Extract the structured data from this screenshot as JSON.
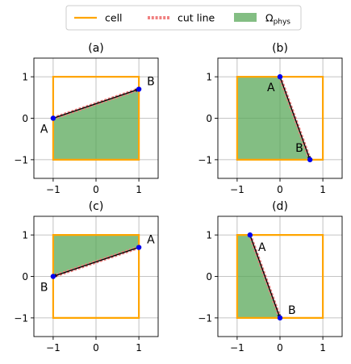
{
  "legend": {
    "items": [
      {
        "label": "cell",
        "color": "#ffa500",
        "style": "solid"
      },
      {
        "label": "cut line",
        "color": "#f08080",
        "style": "dashed"
      },
      {
        "label": "Ω",
        "sub": "phys",
        "color": "#5aa85a",
        "style": "patch"
      }
    ]
  },
  "chart_data": [
    {
      "type": "line",
      "title": "(a)",
      "xlim": [
        -1.45,
        1.45
      ],
      "ylim": [
        -1.45,
        1.45
      ],
      "xticks": [
        -1,
        0,
        1
      ],
      "yticks": [
        -1,
        0,
        1
      ],
      "tick_labels": [
        "−1",
        "0",
        "1"
      ],
      "grid": true,
      "cell": [
        [
          -1,
          -1
        ],
        [
          1,
          -1
        ],
        [
          1,
          1
        ],
        [
          -1,
          1
        ]
      ],
      "region": [
        [
          -1,
          0
        ],
        [
          1,
          0.7
        ],
        [
          1,
          -1
        ],
        [
          -1,
          -1
        ]
      ],
      "cut_line": {
        "start": [
          -1,
          0
        ],
        "end": [
          1,
          0.7
        ]
      },
      "points": [
        {
          "label": "A",
          "x": -1,
          "y": 0,
          "label_pos": "bottom-left"
        },
        {
          "label": "B",
          "x": 1,
          "y": 0.7,
          "label_pos": "top-right"
        }
      ]
    },
    {
      "type": "line",
      "title": "(b)",
      "xlim": [
        -1.45,
        1.45
      ],
      "ylim": [
        -1.45,
        1.45
      ],
      "xticks": [
        -1,
        0,
        1
      ],
      "yticks": [
        -1,
        0,
        1
      ],
      "tick_labels": [
        "−1",
        "0",
        "1"
      ],
      "grid": true,
      "cell": [
        [
          -1,
          -1
        ],
        [
          1,
          -1
        ],
        [
          1,
          1
        ],
        [
          -1,
          1
        ]
      ],
      "region": [
        [
          -1,
          1
        ],
        [
          0,
          1
        ],
        [
          0.7,
          -1
        ],
        [
          -1,
          -1
        ]
      ],
      "cut_line": {
        "start": [
          0,
          1
        ],
        "end": [
          0.7,
          -1
        ]
      },
      "points": [
        {
          "label": "A",
          "x": 0,
          "y": 1,
          "label_pos": "bottom-left"
        },
        {
          "label": "B",
          "x": 0.7,
          "y": -1,
          "label_pos": "top-left"
        }
      ]
    },
    {
      "type": "line",
      "title": "(c)",
      "xlim": [
        -1.45,
        1.45
      ],
      "ylim": [
        -1.45,
        1.45
      ],
      "xticks": [
        -1,
        0,
        1
      ],
      "yticks": [
        -1,
        0,
        1
      ],
      "tick_labels": [
        "−1",
        "0",
        "1"
      ],
      "grid": true,
      "cell": [
        [
          -1,
          -1
        ],
        [
          1,
          -1
        ],
        [
          1,
          1
        ],
        [
          -1,
          1
        ]
      ],
      "region": [
        [
          -1,
          1
        ],
        [
          1,
          1
        ],
        [
          1,
          0.7
        ],
        [
          -1,
          0
        ]
      ],
      "cut_line": {
        "start": [
          1,
          0.7
        ],
        "end": [
          -1,
          0
        ]
      },
      "points": [
        {
          "label": "A",
          "x": 1,
          "y": 0.7,
          "label_pos": "top-right"
        },
        {
          "label": "B",
          "x": -1,
          "y": 0,
          "label_pos": "bottom-left"
        }
      ]
    },
    {
      "type": "line",
      "title": "(d)",
      "xlim": [
        -1.45,
        1.45
      ],
      "ylim": [
        -1.45,
        1.45
      ],
      "xticks": [
        -1,
        0,
        1
      ],
      "yticks": [
        -1,
        0,
        1
      ],
      "tick_labels": [
        "−1",
        "0",
        "1"
      ],
      "grid": true,
      "cell": [
        [
          -1,
          -1
        ],
        [
          1,
          -1
        ],
        [
          1,
          1
        ],
        [
          -1,
          1
        ]
      ],
      "region": [
        [
          -1,
          1
        ],
        [
          -0.7,
          1
        ],
        [
          0,
          -1
        ],
        [
          -1,
          -1
        ]
      ],
      "cut_line": {
        "start": [
          -0.7,
          1
        ],
        "end": [
          0,
          -1
        ]
      },
      "points": [
        {
          "label": "A",
          "x": -0.7,
          "y": 1,
          "label_pos": "bottom-right"
        },
        {
          "label": "B",
          "x": 0,
          "y": -1,
          "label_pos": "top-right"
        }
      ]
    }
  ]
}
